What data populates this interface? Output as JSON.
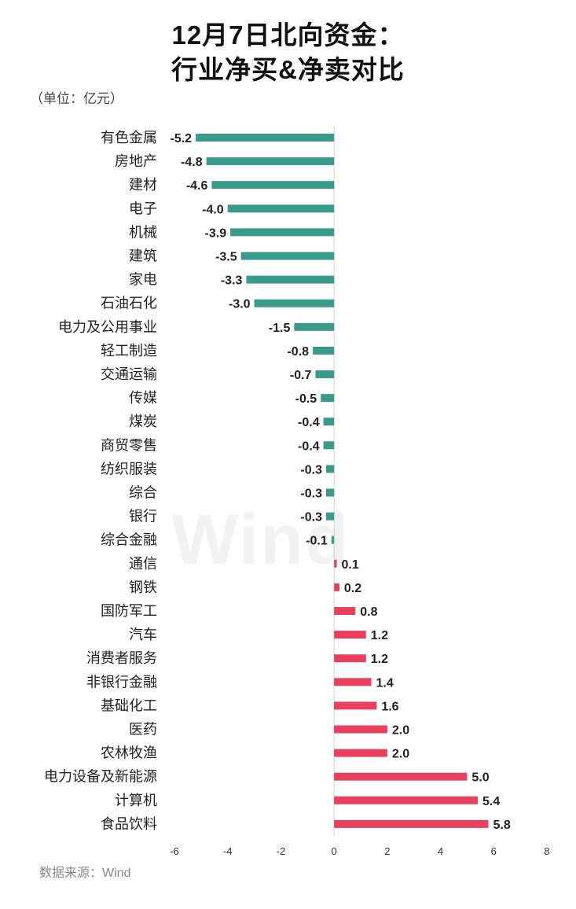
{
  "title_line1": "12月7日北向资金：",
  "title_line2": "行业净买&净卖对比",
  "unit_label": "（单位：亿元）",
  "source": "数据来源：Wind",
  "watermark": "Wind",
  "colors": {
    "positive": "#e8405d",
    "negative": "#3a9b8b",
    "axis": "#d0d0d0"
  },
  "chart_data": {
    "type": "bar",
    "orientation": "horizontal",
    "categories": [
      "有色金属",
      "房地产",
      "建材",
      "电子",
      "机械",
      "建筑",
      "家电",
      "石油石化",
      "电力及公用事业",
      "轻工制造",
      "交通运输",
      "传媒",
      "煤炭",
      "商贸零售",
      "纺织服装",
      "综合",
      "银行",
      "综合金融",
      "通信",
      "钢铁",
      "国防军工",
      "汽车",
      "消费者服务",
      "非银行金融",
      "基础化工",
      "医药",
      "农林牧渔",
      "电力设备及新能源",
      "计算机",
      "食品饮料"
    ],
    "values": [
      -5.2,
      -4.8,
      -4.6,
      -4.0,
      -3.9,
      -3.5,
      -3.3,
      -3.0,
      -1.5,
      -0.8,
      -0.7,
      -0.5,
      -0.4,
      -0.4,
      -0.3,
      -0.3,
      -0.3,
      -0.1,
      0.1,
      0.2,
      0.8,
      1.2,
      1.2,
      1.4,
      1.6,
      2.0,
      2.0,
      5.0,
      5.4,
      5.8
    ],
    "value_labels": [
      "-5.2",
      "-4.8",
      "-4.6",
      "-4.0",
      "-3.9",
      "-3.5",
      "-3.3",
      "-3.0",
      "-1.5",
      "-0.8",
      "-0.7",
      "-0.5",
      "-0.4",
      "-0.4",
      "-0.3",
      "-0.3",
      "-0.3",
      "-0.1",
      "0.1",
      "0.2",
      "0.8",
      "1.2",
      "1.2",
      "1.4",
      "1.6",
      "2.0",
      "2.0",
      "5.0",
      "5.4",
      "5.8"
    ],
    "xlim": [
      -6,
      8
    ],
    "xticks": [
      -6,
      -4,
      -2,
      0,
      2,
      4,
      6,
      8
    ],
    "xtick_labels": [
      "-6",
      "-4",
      "-2",
      "0",
      "2",
      "4",
      "6",
      "8"
    ],
    "grid": false,
    "legend": "none"
  }
}
